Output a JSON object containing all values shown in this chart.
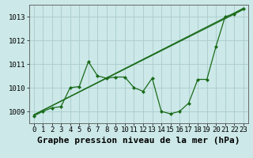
{
  "title": "Graphe pression niveau de la mer (hPa)",
  "background_color": "#cce8e8",
  "grid_color": "#aacccc",
  "line_color": "#1a6b1a",
  "xlim": [
    -0.5,
    23.5
  ],
  "ylim": [
    1008.5,
    1013.5
  ],
  "yticks": [
    1009,
    1010,
    1011,
    1012,
    1013
  ],
  "xticks": [
    0,
    1,
    2,
    3,
    4,
    5,
    6,
    7,
    8,
    9,
    10,
    11,
    12,
    13,
    14,
    15,
    16,
    17,
    18,
    19,
    20,
    21,
    22,
    23
  ],
  "trend1_x": [
    0,
    23
  ],
  "trend1_y": [
    1008.85,
    1013.3
  ],
  "trend2_x": [
    0,
    23
  ],
  "trend2_y": [
    1008.85,
    1013.35
  ],
  "main_x": [
    0,
    1,
    2,
    3,
    4,
    5,
    6,
    7,
    8,
    9,
    10,
    11,
    12,
    13,
    14,
    15,
    16,
    17,
    18,
    19,
    20,
    21,
    22,
    23
  ],
  "main_y": [
    1008.8,
    1009.0,
    1009.15,
    1009.2,
    1010.0,
    1010.05,
    1011.1,
    1010.5,
    1010.4,
    1010.45,
    1010.45,
    1010.0,
    1009.85,
    1010.4,
    1009.0,
    1008.9,
    1009.0,
    1009.35,
    1010.35,
    1010.35,
    1011.75,
    1013.0,
    1013.1,
    1013.35
  ],
  "font_family": "monospace",
  "title_fontsize": 8,
  "tick_fontsize": 6.5
}
